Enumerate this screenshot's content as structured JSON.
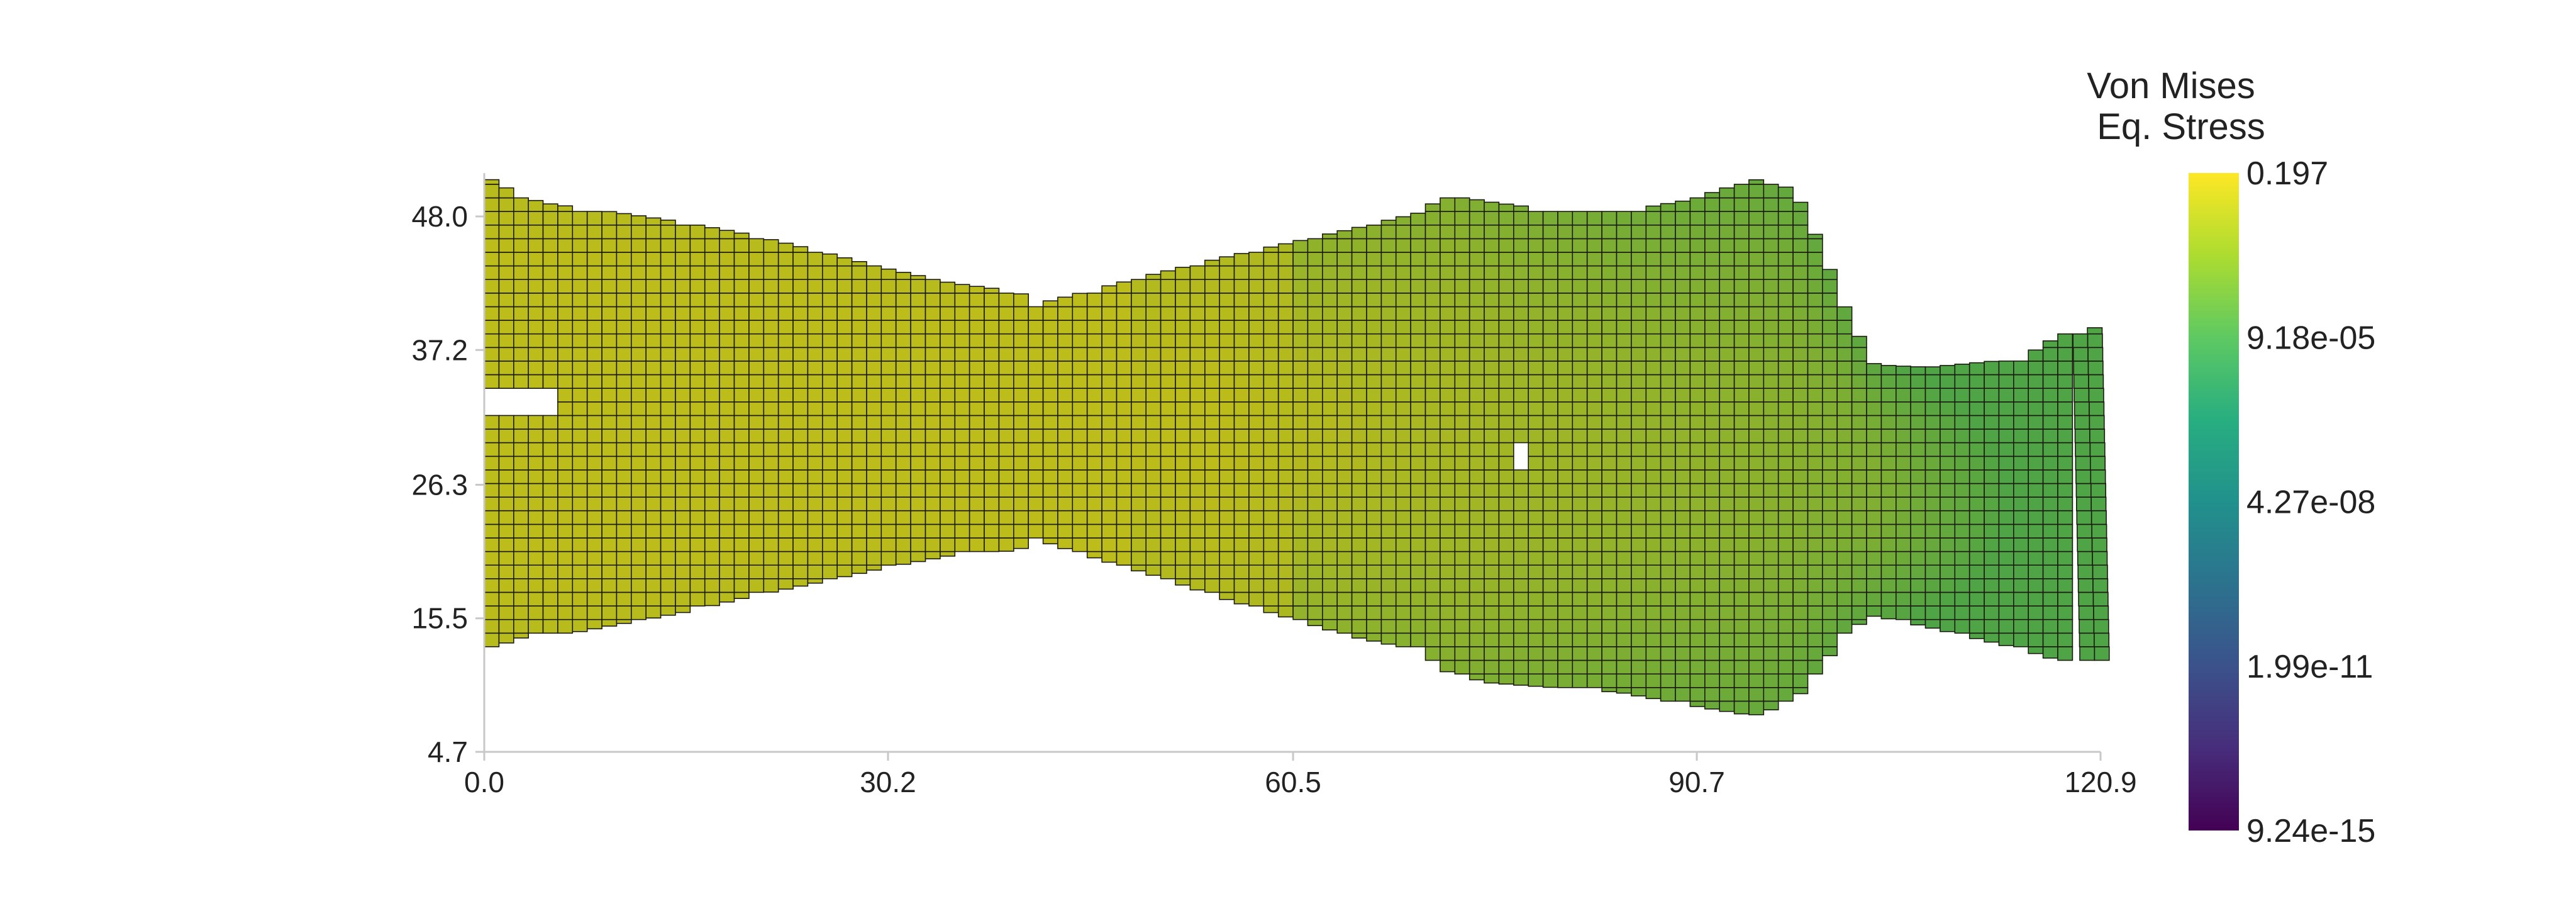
{
  "chart_data": {
    "type": "heatmap",
    "description_free": true,
    "x_ticks": [
      "0.0",
      "30.2",
      "60.5",
      "90.7",
      "120.9"
    ],
    "y_ticks": [
      "48.0",
      "37.2",
      "26.3",
      "15.5",
      "4.7"
    ],
    "x_tick_values": [
      0.0,
      30.2,
      60.5,
      90.7,
      120.9
    ],
    "y_tick_values": [
      48.0,
      37.2,
      26.3,
      15.5,
      4.7
    ],
    "xlim": [
      0.0,
      120.9
    ],
    "ylim": [
      4.7,
      51.5
    ],
    "colorbar": {
      "title_line1": "Von Mises",
      "title_line2": "Eq. Stress",
      "labels": [
        "0.197",
        "9.18e-05",
        "4.27e-08",
        "1.99e-11",
        "9.24e-15"
      ],
      "values": [
        0.197,
        9.18e-05,
        4.27e-08,
        1.99e-11,
        9.24e-15
      ],
      "scale": "log",
      "colormap": "viridis"
    },
    "mesh_edge_color": "#1a1a10",
    "cell_size": 1.1,
    "profile": {
      "x": [
        0,
        3,
        5,
        10,
        15,
        20,
        25,
        30,
        35,
        40,
        41,
        45,
        50,
        55,
        60,
        65,
        70,
        72,
        75,
        80,
        85,
        90,
        95,
        98,
        100,
        102,
        104,
        108,
        115,
        118,
        120.3
      ],
      "top": [
        51.3,
        49.5,
        49.0,
        48.3,
        47.5,
        46.5,
        45.2,
        43.8,
        42.6,
        41.9,
        40.8,
        41.9,
        43.3,
        44.6,
        45.8,
        47.0,
        48.3,
        49.8,
        49.2,
        48.5,
        48.4,
        49.3,
        51.0,
        50.2,
        45.5,
        40.0,
        36.0,
        35.8,
        36.5,
        38.5,
        39.0
      ],
      "bottom": [
        12.9,
        14.0,
        14.0,
        15.0,
        16.0,
        17.3,
        18.4,
        19.6,
        20.6,
        21.0,
        22.0,
        20.6,
        19.0,
        17.2,
        15.6,
        14.0,
        12.9,
        11.2,
        10.3,
        9.9,
        9.5,
        8.5,
        7.6,
        8.8,
        11.5,
        14.5,
        15.7,
        14.8,
        13.0,
        12.0,
        12.0
      ]
    },
    "holes": [
      {
        "x0": 0,
        "x1": 5.0,
        "y0": 32.0,
        "y1": 34.2
      },
      {
        "x0": 76.5,
        "x1": 77.6,
        "y0": 27.5,
        "y1": 29.7
      }
    ]
  }
}
